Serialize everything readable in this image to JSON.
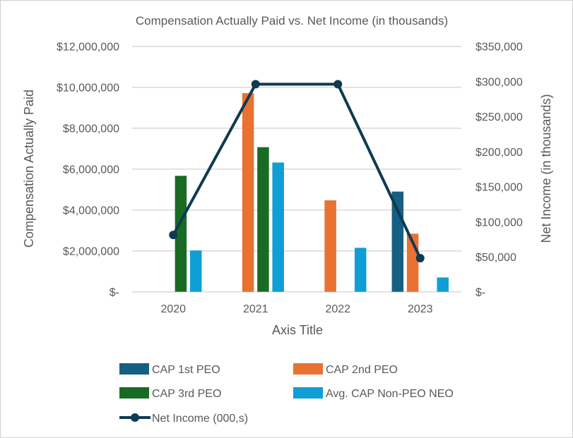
{
  "chart_data": {
    "type": "bar+line",
    "title": "Compensation Actually Paid vs. Net Income (in thousands)",
    "xlabel": "Axis Title",
    "ylabel": "Compensation Actually Paid",
    "y2label": "Net Income (in thousands)",
    "categories": [
      "2020",
      "2021",
      "2022",
      "2023"
    ],
    "ylim": [
      0,
      12000000
    ],
    "y2lim": [
      0,
      350000
    ],
    "yticks": [
      "$-",
      "$2,000,000",
      "$4,000,000",
      "$6,000,000",
      "$8,000,000",
      "$10,000,000",
      "$12,000,000"
    ],
    "y2ticks": [
      "$-",
      "$50,000",
      "$100,000",
      "$150,000",
      "$200,000",
      "$250,000",
      "$300,000",
      "$350,000"
    ],
    "grid": true,
    "legend_placement": "bottom",
    "series": [
      {
        "name": "CAP 1st PEO",
        "type": "bar",
        "axis": "left",
        "color": "#156082",
        "values": [
          null,
          null,
          null,
          4900000
        ]
      },
      {
        "name": "CAP 2nd PEO",
        "type": "bar",
        "axis": "left",
        "color": "#E97132",
        "values": [
          null,
          9710000,
          4470000,
          2840000
        ]
      },
      {
        "name": "CAP 3rd PEO",
        "type": "bar",
        "axis": "left",
        "color": "#196B24",
        "values": [
          5670000,
          7070000,
          null,
          null
        ]
      },
      {
        "name": "Avg. CAP Non-PEO NEO",
        "type": "bar",
        "axis": "left",
        "color": "#0F9ED5",
        "values": [
          2020000,
          6320000,
          2150000,
          700000
        ]
      },
      {
        "name": "Net Income (000,s)",
        "type": "line",
        "axis": "right",
        "color": "#0E3A52",
        "values": [
          81000,
          296000,
          296000,
          48000
        ]
      }
    ]
  }
}
